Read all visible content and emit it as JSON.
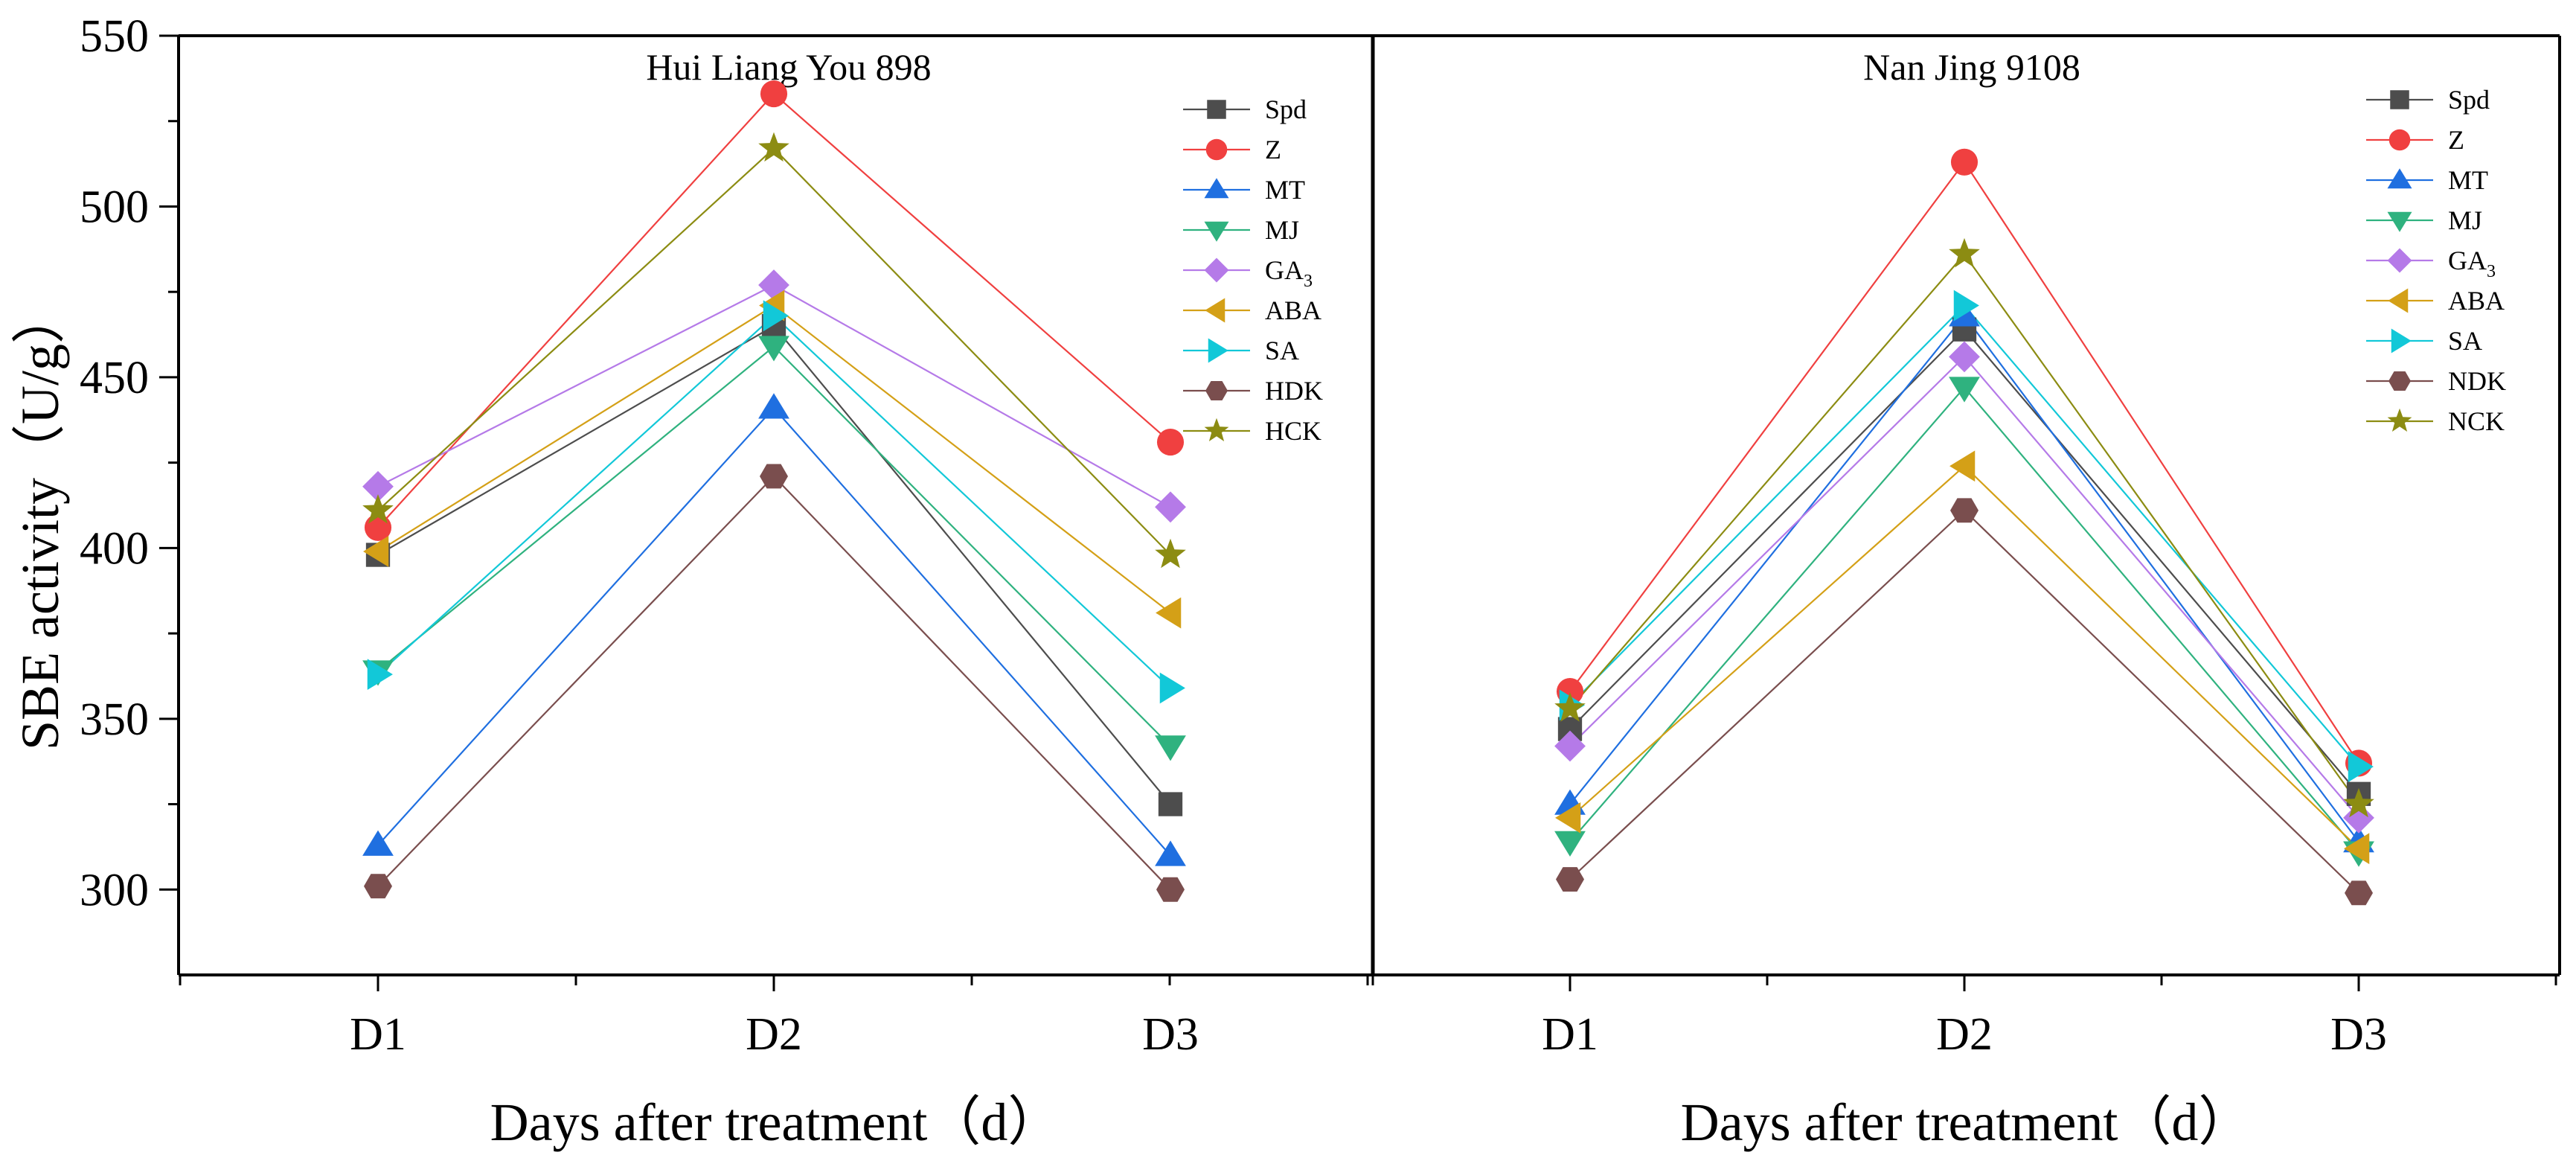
{
  "chart_data": [
    {
      "type": "line",
      "title": "Hui Liang You 898",
      "xlabel": "Days after treatment（d）",
      "ylabel": "SBE activity（U/g）",
      "categories": [
        "D1",
        "D2",
        "D3"
      ],
      "ylim": [
        275,
        550
      ],
      "yticks": [
        300,
        350,
        400,
        450,
        500,
        550
      ],
      "legend_position": "top-right",
      "series": [
        {
          "name": "Spd",
          "color": "#4d4d4d",
          "marker": "square",
          "values": [
            398,
            465,
            325
          ]
        },
        {
          "name": "Z",
          "color": "#f04040",
          "marker": "circle",
          "values": [
            406,
            533,
            431
          ]
        },
        {
          "name": "MT",
          "color": "#1f6fe0",
          "marker": "triangle-up",
          "values": [
            313,
            441,
            310
          ]
        },
        {
          "name": "MJ",
          "color": "#2fb27f",
          "marker": "triangle-down",
          "values": [
            364,
            459,
            342
          ]
        },
        {
          "name": "GA3",
          "color": "#b57ae8",
          "marker": "diamond",
          "values": [
            418,
            477,
            412
          ]
        },
        {
          "name": "ABA",
          "color": "#d4a017",
          "marker": "triangle-left",
          "values": [
            399,
            471,
            381
          ]
        },
        {
          "name": "SA",
          "color": "#12c8d8",
          "marker": "triangle-right",
          "values": [
            363,
            468,
            359
          ]
        },
        {
          "name": "HDK",
          "color": "#7a4e4e",
          "marker": "hexagon",
          "values": [
            301,
            421,
            300
          ]
        },
        {
          "name": "HCK",
          "color": "#8c8c12",
          "marker": "star",
          "values": [
            411,
            517,
            398
          ]
        }
      ]
    },
    {
      "type": "line",
      "title": "Nan Jing 9108",
      "xlabel": "Days after treatment（d）",
      "ylabel": "",
      "categories": [
        "D1",
        "D2",
        "D3"
      ],
      "ylim": [
        275,
        550
      ],
      "legend_position": "top-right",
      "series": [
        {
          "name": "Spd",
          "color": "#4d4d4d",
          "marker": "square",
          "values": [
            347,
            464,
            328
          ]
        },
        {
          "name": "Z",
          "color": "#f04040",
          "marker": "circle",
          "values": [
            358,
            513,
            337
          ]
        },
        {
          "name": "MT",
          "color": "#1f6fe0",
          "marker": "triangle-up",
          "values": [
            325,
            468,
            314
          ]
        },
        {
          "name": "MJ",
          "color": "#2fb27f",
          "marker": "triangle-down",
          "values": [
            314,
            447,
            311
          ]
        },
        {
          "name": "GA3",
          "color": "#b57ae8",
          "marker": "diamond",
          "values": [
            342,
            456,
            321
          ]
        },
        {
          "name": "ABA",
          "color": "#d4a017",
          "marker": "triangle-left",
          "values": [
            321,
            424,
            312
          ]
        },
        {
          "name": "SA",
          "color": "#12c8d8",
          "marker": "triangle-right",
          "values": [
            354,
            471,
            336
          ]
        },
        {
          "name": "NDK",
          "color": "#7a4e4e",
          "marker": "hexagon",
          "values": [
            303,
            411,
            299
          ]
        },
        {
          "name": "NCK",
          "color": "#8c8c12",
          "marker": "star",
          "values": [
            353,
            486,
            325
          ]
        }
      ]
    }
  ]
}
